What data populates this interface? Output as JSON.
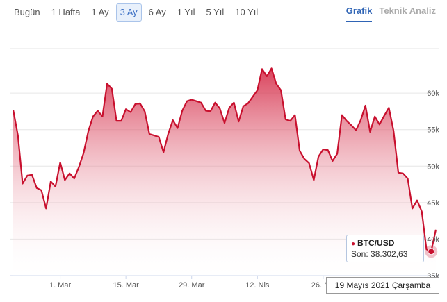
{
  "range_buttons": [
    "Bugün",
    "1 Hafta",
    "1 Ay",
    "3 Ay",
    "6 Ay",
    "1 Yıl",
    "5 Yıl",
    "10 Yıl"
  ],
  "range_active_index": 3,
  "view_tabs": {
    "chart": "Grafik",
    "analysis": "Teknik Analiz"
  },
  "tooltip": {
    "series": "BTC/USD",
    "value": "Son: 38.302,63"
  },
  "crosshair_date": "19 Mayıs 2021 Çarşamba",
  "colors": {
    "line": "#c8102e",
    "accent": "#2f64b5"
  },
  "chart_data": {
    "type": "area",
    "x": [
      "2021-02-19",
      "2021-02-20",
      "2021-02-21",
      "2021-02-22",
      "2021-02-23",
      "2021-02-24",
      "2021-02-25",
      "2021-02-26",
      "2021-02-27",
      "2021-02-28",
      "2021-03-01",
      "2021-03-02",
      "2021-03-03",
      "2021-03-04",
      "2021-03-05",
      "2021-03-06",
      "2021-03-07",
      "2021-03-08",
      "2021-03-09",
      "2021-03-10",
      "2021-03-11",
      "2021-03-12",
      "2021-03-13",
      "2021-03-14",
      "2021-03-15",
      "2021-03-16",
      "2021-03-17",
      "2021-03-18",
      "2021-03-19",
      "2021-03-20",
      "2021-03-21",
      "2021-03-22",
      "2021-03-23",
      "2021-03-24",
      "2021-03-25",
      "2021-03-26",
      "2021-03-27",
      "2021-03-28",
      "2021-03-29",
      "2021-03-30",
      "2021-03-31",
      "2021-04-01",
      "2021-04-02",
      "2021-04-03",
      "2021-04-04",
      "2021-04-05",
      "2021-04-06",
      "2021-04-07",
      "2021-04-08",
      "2021-04-09",
      "2021-04-10",
      "2021-04-11",
      "2021-04-12",
      "2021-04-13",
      "2021-04-14",
      "2021-04-15",
      "2021-04-16",
      "2021-04-17",
      "2021-04-18",
      "2021-04-19",
      "2021-04-20",
      "2021-04-21",
      "2021-04-22",
      "2021-04-23",
      "2021-04-24",
      "2021-04-25",
      "2021-04-26",
      "2021-04-27",
      "2021-04-28",
      "2021-04-29",
      "2021-04-30",
      "2021-05-01",
      "2021-05-02",
      "2021-05-03",
      "2021-05-04",
      "2021-05-05",
      "2021-05-06",
      "2021-05-07",
      "2021-05-08",
      "2021-05-09",
      "2021-05-10",
      "2021-05-11",
      "2021-05-12",
      "2021-05-13",
      "2021-05-14",
      "2021-05-15",
      "2021-05-16",
      "2021-05-17",
      "2021-05-18",
      "2021-05-19",
      "2021-05-20"
    ],
    "y": [
      57700,
      54200,
      47600,
      48700,
      48800,
      47000,
      46700,
      44200,
      47900,
      47200,
      50500,
      48100,
      49000,
      48300,
      49900,
      51800,
      54800,
      56800,
      57600,
      56800,
      61300,
      60600,
      56200,
      56200,
      57800,
      57400,
      58500,
      58600,
      57500,
      54400,
      54200,
      54000,
      51900,
      54400,
      56300,
      55200,
      57600,
      58900,
      59100,
      58900,
      58700,
      57600,
      57500,
      58700,
      57900,
      55900,
      58000,
      58700,
      56100,
      58200,
      58600,
      59500,
      60400,
      63300,
      62300,
      63400,
      61300,
      60400,
      56400,
      56200,
      57000,
      52100,
      51000,
      50400,
      48100,
      51300,
      52300,
      52200,
      50700,
      51700,
      57000,
      56200,
      55600,
      54900,
      56300,
      58300,
      54700,
      56800,
      55700,
      56900,
      58000,
      54800,
      49100,
      49000,
      48300,
      44200,
      45300,
      43800,
      38600,
      38300,
      41300
    ],
    "title": "",
    "xlabel": "",
    "ylabel": "",
    "xticks": [
      "1. Mar",
      "15. Mar",
      "29. Mar",
      "12. Nis",
      "26. Nis"
    ],
    "yticks": [
      "35k",
      "40k",
      "45k",
      "50k",
      "55k",
      "60k"
    ],
    "ylim": [
      35000,
      68000
    ],
    "grid": true,
    "highlight": {
      "x": "2021-05-19",
      "y": 38302.63
    }
  }
}
